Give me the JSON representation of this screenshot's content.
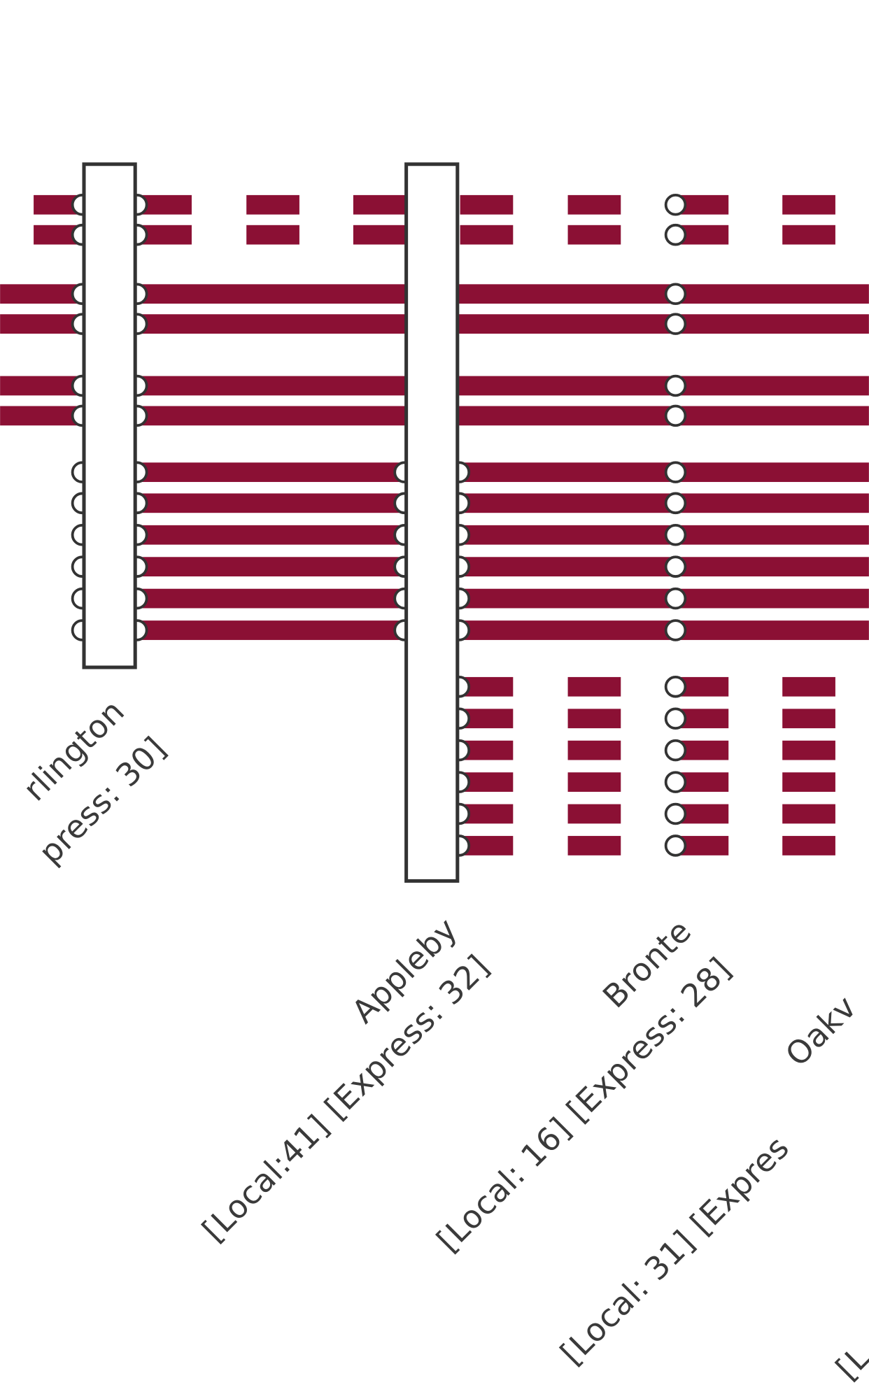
{
  "stations": [
    {
      "name": "rlington",
      "details": "press: 30]"
    },
    {
      "name": "Appleby",
      "details": "[Local:41] [Express: 32]"
    },
    {
      "name": "Bronte",
      "details": "[Local: 16] [Express: 28]"
    },
    {
      "name": "Oakv",
      "details": "[Local: 31] [Expres"
    },
    {
      "details": "[L"
    }
  ]
}
